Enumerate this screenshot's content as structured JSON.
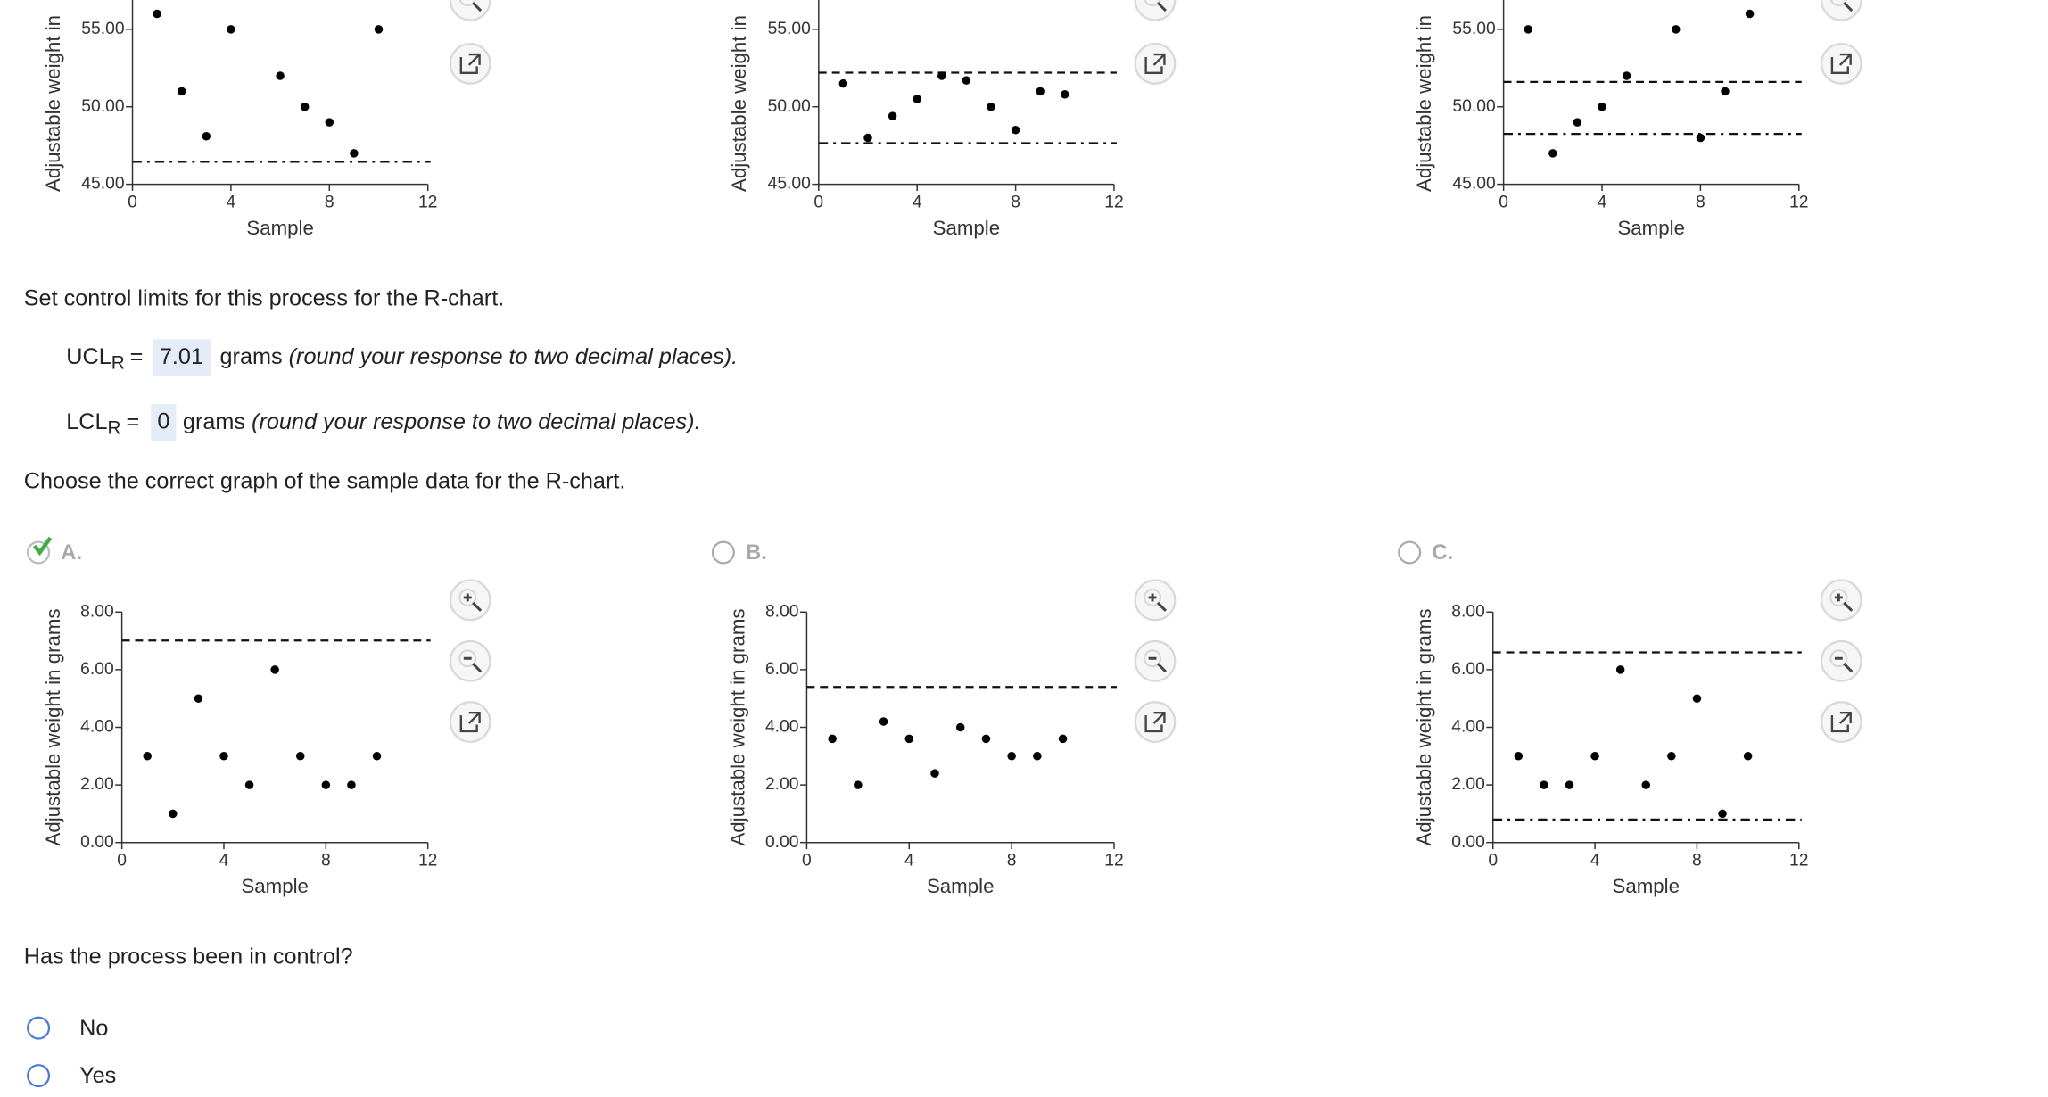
{
  "question_limits": "Set control limits for this process for the R-chart.",
  "ucl": {
    "label": "UCL",
    "subscript": "R",
    "equals": "=",
    "value": 7.01,
    "unit": "grams",
    "note": "(round your response to two decimal places)."
  },
  "lcl": {
    "label": "LCL",
    "subscript": "R",
    "equals": "=",
    "value": 0,
    "unit": "grams",
    "note": "(round your response to two decimal places)."
  },
  "question_graph": "Choose the correct graph of the sample data for the R-chart.",
  "chart_data": [
    {
      "type": "scatter",
      "ylabel": "Adjustable weight in",
      "xlabel": "Sample",
      "x": [
        1,
        2,
        3,
        4,
        6,
        7,
        8,
        9,
        10
      ],
      "values": [
        56,
        51,
        48.1,
        55,
        52,
        50,
        49,
        47,
        55
      ],
      "xlim": [
        0,
        12
      ],
      "ylim": [
        45,
        60
      ],
      "xticks": [
        0,
        4,
        8,
        12
      ],
      "yticks": [
        {
          "value": 45,
          "label": "45.00"
        },
        {
          "value": 50,
          "label": "50.00"
        },
        {
          "value": 55,
          "label": "55.00"
        }
      ],
      "lines": [
        {
          "value": 46.45,
          "style": "dashdot"
        }
      ],
      "color": "#000000"
    },
    {
      "type": "scatter",
      "ylabel": "Adjustable weight in",
      "xlabel": "Sample",
      "x": [
        1,
        2,
        3,
        4,
        5,
        6,
        7,
        8,
        9,
        10
      ],
      "values": [
        51.5,
        48,
        49.4,
        50.5,
        52,
        51.7,
        50,
        48.5,
        51,
        50.8
      ],
      "xlim": [
        0,
        12
      ],
      "ylim": [
        45,
        60
      ],
      "xticks": [
        0,
        4,
        8,
        12
      ],
      "yticks": [
        {
          "value": 45,
          "label": "45.00"
        },
        {
          "value": 50,
          "label": "50.00"
        },
        {
          "value": 55,
          "label": "55.00"
        }
      ],
      "lines": [
        {
          "value": 52.2,
          "style": "dashed"
        },
        {
          "value": 47.65,
          "style": "dashdot"
        }
      ],
      "color": "#000000"
    },
    {
      "type": "scatter",
      "ylabel": "Adjustable weight in",
      "xlabel": "Sample",
      "x": [
        1,
        2,
        3,
        4,
        5,
        7,
        8,
        9,
        10
      ],
      "values": [
        55,
        47,
        49,
        50,
        52,
        55,
        48,
        51,
        56
      ],
      "xlim": [
        0,
        12
      ],
      "ylim": [
        45,
        60
      ],
      "xticks": [
        0,
        4,
        8,
        12
      ],
      "yticks": [
        {
          "value": 45,
          "label": "45.00"
        },
        {
          "value": 50,
          "label": "50.00"
        },
        {
          "value": 55,
          "label": "55.00"
        }
      ],
      "lines": [
        {
          "value": 51.6,
          "style": "dashed"
        },
        {
          "value": 48.25,
          "style": "dashdot"
        }
      ],
      "color": "#000000"
    },
    {
      "type": "scatter",
      "label": "A.",
      "selected": true,
      "ylabel": "Adjustable weight in grams",
      "xlabel": "Sample",
      "x": [
        1,
        2,
        3,
        4,
        5,
        6,
        7,
        8,
        9,
        10
      ],
      "values": [
        3,
        1,
        5,
        3,
        2,
        6,
        3,
        2,
        2,
        3
      ],
      "xlim": [
        0,
        12
      ],
      "ylim": [
        0,
        8
      ],
      "xticks": [
        0,
        4,
        8,
        12
      ],
      "yticks": [
        {
          "value": 0,
          "label": "0.00"
        },
        {
          "value": 2,
          "label": "2.00"
        },
        {
          "value": 4,
          "label": "4.00"
        },
        {
          "value": 6,
          "label": "6.00"
        },
        {
          "value": 8,
          "label": "8.00"
        }
      ],
      "lines": [
        {
          "value": 7.01,
          "style": "dashed"
        }
      ],
      "color": "#000000"
    },
    {
      "type": "scatter",
      "label": "B.",
      "selected": false,
      "ylabel": "Adjustable weight in grams",
      "xlabel": "Sample",
      "x": [
        1,
        2,
        3,
        4,
        5,
        6,
        7,
        8,
        9,
        10
      ],
      "values": [
        3.6,
        2,
        4.2,
        3.6,
        2.4,
        4,
        3.6,
        3,
        3,
        3.6
      ],
      "xlim": [
        0,
        12
      ],
      "ylim": [
        0,
        8
      ],
      "xticks": [
        0,
        4,
        8,
        12
      ],
      "yticks": [
        {
          "value": 0,
          "label": "0.00"
        },
        {
          "value": 2,
          "label": "2.00"
        },
        {
          "value": 4,
          "label": "4.00"
        },
        {
          "value": 6,
          "label": "6.00"
        },
        {
          "value": 8,
          "label": "8.00"
        }
      ],
      "lines": [
        {
          "value": 5.4,
          "style": "dashed"
        }
      ],
      "color": "#000000"
    },
    {
      "type": "scatter",
      "label": "C.",
      "selected": false,
      "ylabel": "Adjustable weight in grams",
      "xlabel": "Sample",
      "x": [
        1,
        2,
        3,
        4,
        5,
        6,
        7,
        8,
        9,
        10
      ],
      "values": [
        3,
        2,
        2,
        3,
        6,
        2,
        3,
        5,
        1,
        3
      ],
      "xlim": [
        0,
        12
      ],
      "ylim": [
        0,
        8
      ],
      "xticks": [
        0,
        4,
        8,
        12
      ],
      "yticks": [
        {
          "value": 0,
          "label": "0.00"
        },
        {
          "value": 2,
          "label": "2.00"
        },
        {
          "value": 4,
          "label": "4.00"
        },
        {
          "value": 6,
          "label": "6.00"
        },
        {
          "value": 8,
          "label": "8.00"
        }
      ],
      "lines": [
        {
          "value": 6.6,
          "style": "dashed"
        },
        {
          "value": 0.8,
          "style": "dashdot"
        }
      ],
      "color": "#000000"
    }
  ],
  "question_control": "Has the process been in control?",
  "options": [
    "No",
    "Yes"
  ]
}
